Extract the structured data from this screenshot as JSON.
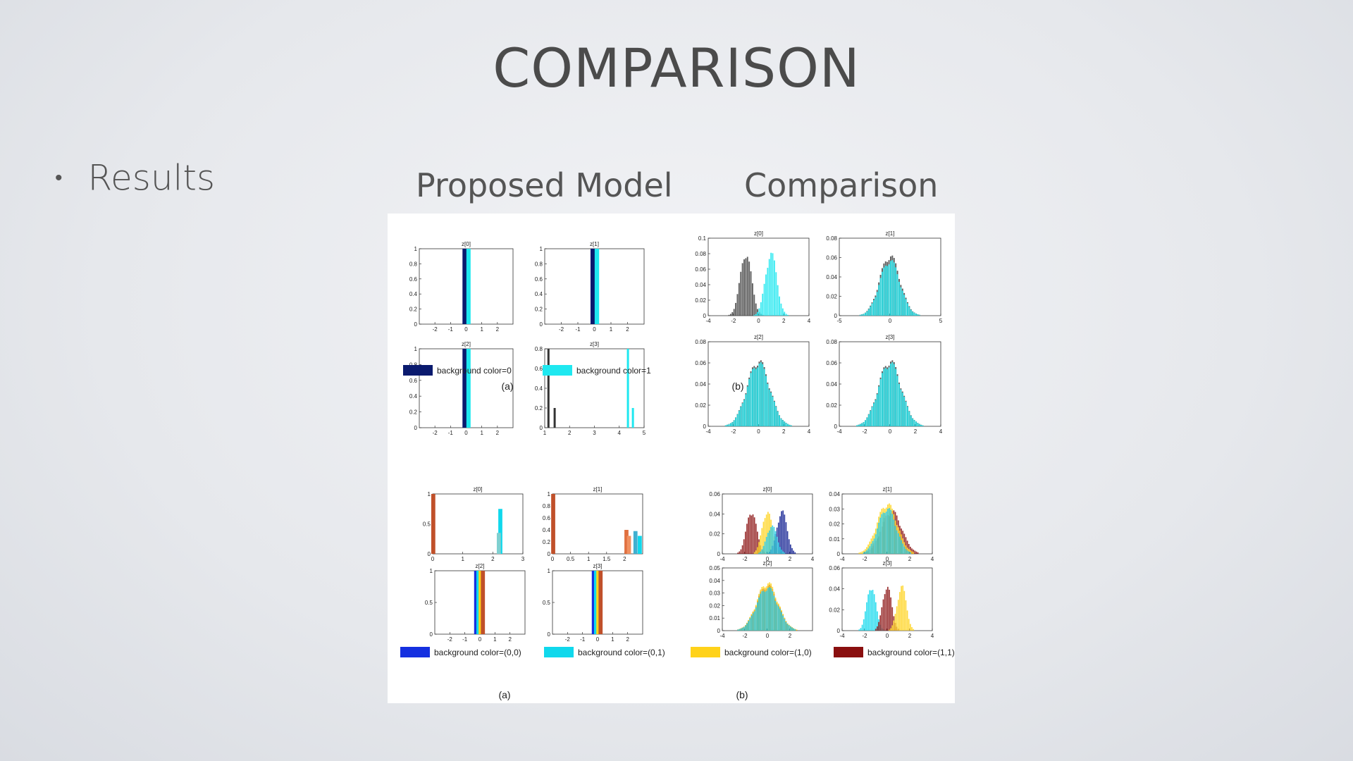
{
  "slide": {
    "title": "COMPARISON",
    "bullet": "Results",
    "left_header": "Proposed Model",
    "right_header": "Comparison"
  },
  "colors": {
    "dark_navy": "#0a1a6e",
    "cyan": "#1fe8f0",
    "dark_gray": "#444444",
    "blue": "#1530e0",
    "cyan2": "#10d8ec",
    "yellow": "#ffd21a",
    "dark_red": "#8a0f0f"
  },
  "chart_data": [
    {
      "type": "bar",
      "panel": "top-proposed",
      "caption": "(a)",
      "legend": [
        {
          "label": "background color=0",
          "color": "#0a1a6e"
        },
        {
          "label": "background color=1",
          "color": "#1fe8f0"
        }
      ],
      "subplots": [
        {
          "title": "z[0]",
          "xlim": [
            -3,
            3
          ],
          "ylim": [
            0,
            1
          ],
          "xticks": [
            -2,
            -1,
            0,
            1,
            2
          ],
          "yticks": [
            0,
            0.2,
            0.4,
            0.6,
            0.8,
            1
          ],
          "bars": [
            {
              "x": -0.1,
              "value": 1,
              "series": 0
            },
            {
              "x": 0.15,
              "value": 1,
              "series": 1
            }
          ]
        },
        {
          "title": "z[1]",
          "xlim": [
            -3,
            3
          ],
          "ylim": [
            0,
            1
          ],
          "xticks": [
            -2,
            -1,
            0,
            1,
            2
          ],
          "yticks": [
            0,
            0.2,
            0.4,
            0.6,
            0.8,
            1
          ],
          "bars": [
            {
              "x": -0.1,
              "value": 1,
              "series": 0
            },
            {
              "x": 0.15,
              "value": 1,
              "series": 1
            }
          ]
        },
        {
          "title": "z[2]",
          "xlim": [
            -3,
            3
          ],
          "ylim": [
            0,
            1
          ],
          "xticks": [
            -2,
            -1,
            0,
            1,
            2
          ],
          "yticks": [
            0,
            0.2,
            0.4,
            0.6,
            0.8,
            1
          ],
          "bars": [
            {
              "x": -0.1,
              "value": 1,
              "series": 0
            },
            {
              "x": 0.15,
              "value": 1,
              "series": 1
            }
          ]
        },
        {
          "title": "z[3]",
          "xlim": [
            1,
            5
          ],
          "ylim": [
            0,
            0.8
          ],
          "xticks": [
            1,
            2,
            3,
            4,
            5
          ],
          "yticks": [
            0,
            0.2,
            0.4,
            0.6,
            0.8
          ],
          "bars": [
            {
              "x": 1.15,
              "value": 0.8,
              "series": 0
            },
            {
              "x": 1.4,
              "value": 0.2,
              "series": 0
            },
            {
              "x": 4.35,
              "value": 0.8,
              "series": 1
            },
            {
              "x": 4.55,
              "value": 0.2,
              "series": 1
            }
          ]
        }
      ]
    },
    {
      "type": "histogram",
      "panel": "top-comparison",
      "caption": "(b)",
      "subplots": [
        {
          "title": "z[0]",
          "xlim": [
            -4,
            4
          ],
          "ylim": [
            0,
            0.1
          ],
          "xticks": [
            -4,
            -2,
            0,
            2,
            4
          ],
          "yticks": [
            0,
            0.02,
            0.04,
            0.06,
            0.08,
            0.1
          ],
          "series": [
            {
              "color": "#444444",
              "mean": -1,
              "sd": 0.45,
              "peak": 0.085
            },
            {
              "color": "#1fe8f0",
              "mean": 1,
              "sd": 0.45,
              "peak": 0.085
            }
          ]
        },
        {
          "title": "z[1]",
          "xlim": [
            -5,
            5
          ],
          "ylim": [
            0,
            0.08
          ],
          "xticks": [
            -5,
            0,
            5
          ],
          "yticks": [
            0,
            0.02,
            0.04,
            0.06,
            0.08
          ],
          "series": [
            {
              "color": "#444444",
              "mean": 0,
              "sd": 1,
              "peak": 0.065
            },
            {
              "color": "#1fe8f0",
              "mean": 0,
              "sd": 1,
              "peak": 0.06
            }
          ]
        },
        {
          "title": "z[2]",
          "xlim": [
            -4,
            4
          ],
          "ylim": [
            0,
            0.08
          ],
          "xticks": [
            -4,
            -2,
            0,
            2,
            4
          ],
          "yticks": [
            0,
            0.02,
            0.04,
            0.06,
            0.08
          ],
          "series": [
            {
              "color": "#444444",
              "mean": 0,
              "sd": 0.9,
              "peak": 0.065
            },
            {
              "color": "#1fe8f0",
              "mean": 0,
              "sd": 0.9,
              "peak": 0.063
            }
          ]
        },
        {
          "title": "z[3]",
          "xlim": [
            -4,
            4
          ],
          "ylim": [
            0,
            0.08
          ],
          "xticks": [
            -4,
            -2,
            0,
            2,
            4
          ],
          "yticks": [
            0,
            0.02,
            0.04,
            0.06,
            0.08
          ],
          "series": [
            {
              "color": "#444444",
              "mean": 0,
              "sd": 0.9,
              "peak": 0.065
            },
            {
              "color": "#1fe8f0",
              "mean": 0,
              "sd": 0.9,
              "peak": 0.063
            }
          ]
        }
      ]
    },
    {
      "type": "bar",
      "panel": "bottom-proposed",
      "caption": "(a)",
      "legend": [
        {
          "label": "background color=(0,0)",
          "color": "#1530e0"
        },
        {
          "label": "background color=(0,1)",
          "color": "#10d8ec"
        }
      ],
      "subplots": [
        {
          "title": "z[0]",
          "xlim": [
            0,
            3
          ],
          "ylim": [
            0,
            1
          ],
          "xticks": [
            0,
            1,
            2,
            3
          ],
          "yticks": [
            0,
            0.5,
            1
          ],
          "bars": [
            {
              "x": 0.02,
              "value": 1,
              "color": "#c0502a"
            },
            {
              "x": 2.25,
              "value": 0.75,
              "color": "#10d8ec"
            },
            {
              "x": 2.2,
              "value": 0.35,
              "color": "#7fd0d0"
            }
          ]
        },
        {
          "title": "z[1]",
          "xlim": [
            0,
            2.5
          ],
          "ylim": [
            0,
            1
          ],
          "xticks": [
            0,
            0.5,
            1,
            1.5,
            2
          ],
          "yticks": [
            0,
            0.2,
            0.4,
            0.6,
            0.8,
            1
          ],
          "bars": [
            {
              "x": 0.02,
              "value": 1,
              "color": "#c0502a"
            },
            {
              "x": 2.05,
              "value": 0.4,
              "color": "#e07040"
            },
            {
              "x": 2.12,
              "value": 0.3,
              "color": "#f09060"
            },
            {
              "x": 2.3,
              "value": 0.38,
              "color": "#40b0d0"
            },
            {
              "x": 2.42,
              "value": 0.3,
              "color": "#10d8ec"
            }
          ]
        },
        {
          "title": "z[2]",
          "xlim": [
            -3,
            3
          ],
          "ylim": [
            0,
            1
          ],
          "xticks": [
            -2,
            -1,
            0,
            1,
            2
          ],
          "yticks": [
            0,
            0.5,
            1
          ],
          "bars": [
            {
              "x": -0.25,
              "value": 1,
              "color": "#1530e0"
            },
            {
              "x": -0.1,
              "value": 1,
              "color": "#10d8ec"
            },
            {
              "x": 0.05,
              "value": 1,
              "color": "#ffd21a"
            },
            {
              "x": 0.2,
              "value": 1,
              "color": "#c0502a"
            }
          ]
        },
        {
          "title": "z[3]",
          "xlim": [
            -3,
            3
          ],
          "ylim": [
            0,
            1
          ],
          "xticks": [
            -2,
            -1,
            0,
            1,
            2
          ],
          "yticks": [
            0,
            0.5,
            1
          ],
          "bars": [
            {
              "x": -0.25,
              "value": 1,
              "color": "#1530e0"
            },
            {
              "x": -0.1,
              "value": 1,
              "color": "#10d8ec"
            },
            {
              "x": 0.05,
              "value": 1,
              "color": "#ffd21a"
            },
            {
              "x": 0.2,
              "value": 1,
              "color": "#c0502a"
            }
          ]
        }
      ]
    },
    {
      "type": "histogram",
      "panel": "bottom-comparison",
      "caption": "(b)",
      "legend": [
        {
          "label": "background color=(1,0)",
          "color": "#ffd21a"
        },
        {
          "label": "background color=(1,1)",
          "color": "#8a0f0f"
        }
      ],
      "subplots": [
        {
          "title": "z[0]",
          "xlim": [
            -4,
            4
          ],
          "ylim": [
            0,
            0.06
          ],
          "xticks": [
            -4,
            -2,
            0,
            2,
            4
          ],
          "yticks": [
            0,
            0.02,
            0.04,
            0.06
          ],
          "series": [
            {
              "color": "#8a0f0f",
              "mean": -1.4,
              "sd": 0.45,
              "peak": 0.045
            },
            {
              "color": "#ffd21a",
              "mean": 0,
              "sd": 0.45,
              "peak": 0.045
            },
            {
              "color": "#0a1a8e",
              "mean": 1.3,
              "sd": 0.45,
              "peak": 0.045
            },
            {
              "color": "#1fc8e0",
              "mean": 0.4,
              "sd": 0.45,
              "peak": 0.03
            }
          ]
        },
        {
          "title": "z[1]",
          "xlim": [
            -4,
            4
          ],
          "ylim": [
            0,
            0.04
          ],
          "xticks": [
            -4,
            -2,
            0,
            2,
            4
          ],
          "yticks": [
            0,
            0.01,
            0.02,
            0.03,
            0.04
          ],
          "series": [
            {
              "color": "#8a0f0f",
              "mean": 0.4,
              "sd": 0.9,
              "peak": 0.03
            },
            {
              "color": "#ffd21a",
              "mean": 0,
              "sd": 0.9,
              "peak": 0.035
            },
            {
              "color": "#1fc8e0",
              "mean": 0,
              "sd": 0.8,
              "peak": 0.032
            }
          ]
        },
        {
          "title": "z[2]",
          "xlim": [
            -4,
            4
          ],
          "ylim": [
            0,
            0.05
          ],
          "xticks": [
            -4,
            -2,
            0,
            2
          ],
          "yticks": [
            0,
            0.01,
            0.02,
            0.03,
            0.04,
            0.05
          ],
          "series": [
            {
              "color": "#8a0f0f",
              "mean": 0,
              "sd": 0.95,
              "peak": 0.038
            },
            {
              "color": "#ffd21a",
              "mean": 0,
              "sd": 0.95,
              "peak": 0.04
            },
            {
              "color": "#1fc8e0",
              "mean": 0,
              "sd": 0.95,
              "peak": 0.036
            }
          ]
        },
        {
          "title": "z[3]",
          "xlim": [
            -4,
            4
          ],
          "ylim": [
            0,
            0.06
          ],
          "xticks": [
            -4,
            -2,
            0,
            2,
            4
          ],
          "yticks": [
            0,
            0.02,
            0.04,
            0.06
          ],
          "series": [
            {
              "color": "#10d8ec",
              "mean": -1.4,
              "sd": 0.4,
              "peak": 0.045
            },
            {
              "color": "#8a0f0f",
              "mean": 0,
              "sd": 0.4,
              "peak": 0.045
            },
            {
              "color": "#ffd21a",
              "mean": 1.3,
              "sd": 0.4,
              "peak": 0.045
            }
          ]
        }
      ]
    }
  ]
}
